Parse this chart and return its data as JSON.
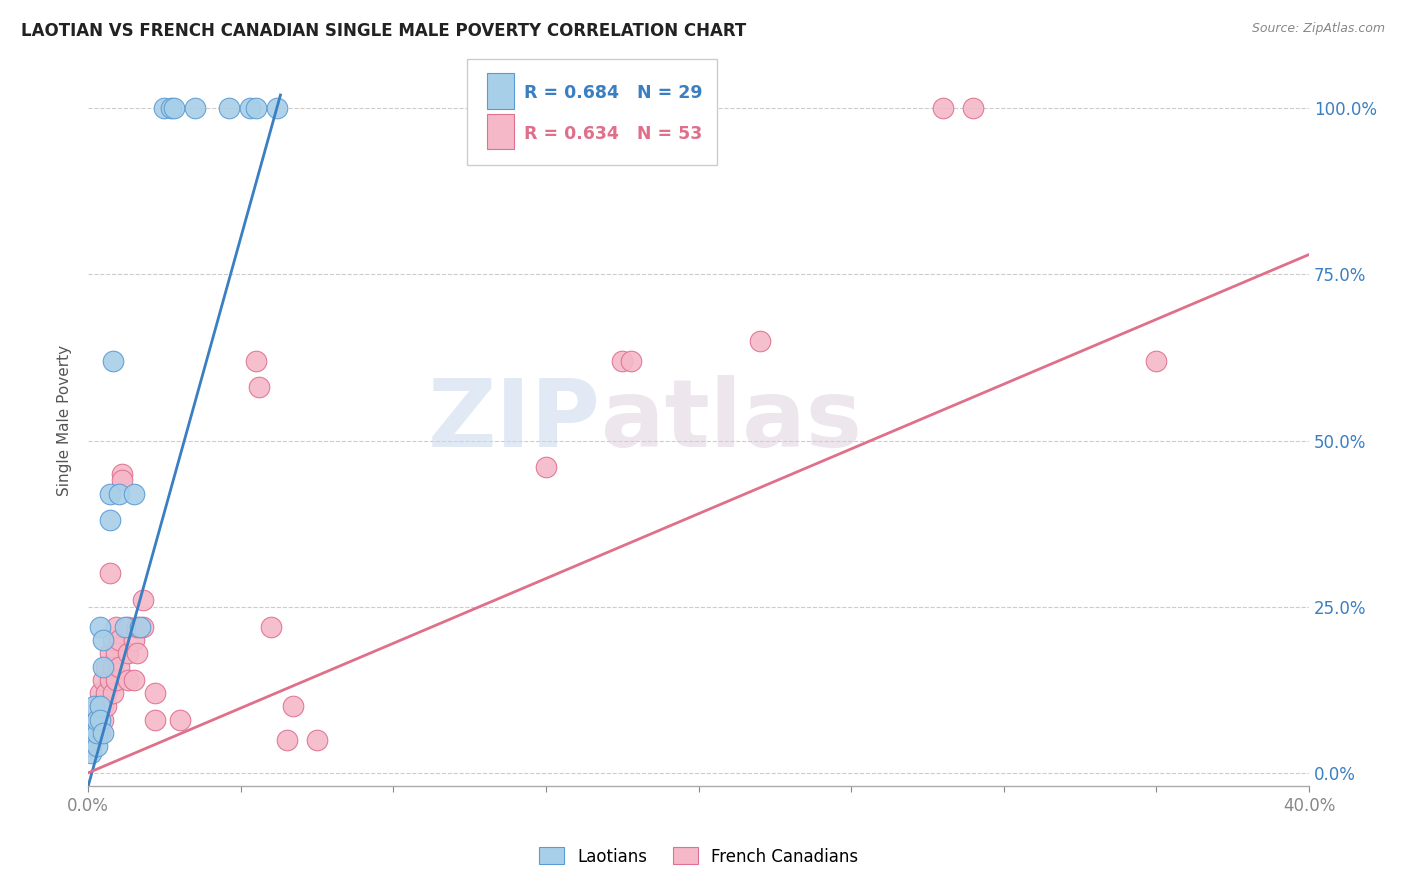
{
  "title": "LAOTIAN VS FRENCH CANADIAN SINGLE MALE POVERTY CORRELATION CHART",
  "source": "Source: ZipAtlas.com",
  "ylabel": "Single Male Poverty",
  "ytick_labels": [
    "0.0%",
    "25.0%",
    "50.0%",
    "75.0%",
    "100.0%"
  ],
  "ytick_values": [
    0.0,
    0.25,
    0.5,
    0.75,
    1.0
  ],
  "xlim": [
    0.0,
    0.4
  ],
  "ylim": [
    -0.02,
    1.08
  ],
  "legend_laotian_R": "R = 0.684",
  "legend_laotian_N": "N = 29",
  "legend_french_R": "R = 0.634",
  "legend_french_N": "N = 53",
  "laotian_color": "#a8cfe8",
  "laotian_edge_color": "#5b9bd5",
  "french_color": "#f4b8c8",
  "french_edge_color": "#e07090",
  "laotian_line_color": "#3a7fc1",
  "french_line_color": "#e0708a",
  "background_color": "#ffffff",
  "watermark_zip": "ZIP",
  "watermark_atlas": "atlas",
  "laotian_points": [
    [
      0.001,
      0.03
    ],
    [
      0.001,
      0.06
    ],
    [
      0.001,
      0.05
    ],
    [
      0.002,
      0.07
    ],
    [
      0.002,
      0.1
    ],
    [
      0.003,
      0.04
    ],
    [
      0.003,
      0.06
    ],
    [
      0.003,
      0.08
    ],
    [
      0.004,
      0.22
    ],
    [
      0.004,
      0.1
    ],
    [
      0.004,
      0.08
    ],
    [
      0.005,
      0.2
    ],
    [
      0.005,
      0.16
    ],
    [
      0.005,
      0.06
    ],
    [
      0.007,
      0.42
    ],
    [
      0.007,
      0.38
    ],
    [
      0.008,
      0.62
    ],
    [
      0.01,
      0.42
    ],
    [
      0.012,
      0.22
    ],
    [
      0.015,
      0.42
    ],
    [
      0.017,
      0.22
    ],
    [
      0.025,
      1.0
    ],
    [
      0.027,
      1.0
    ],
    [
      0.028,
      1.0
    ],
    [
      0.035,
      1.0
    ],
    [
      0.046,
      1.0
    ],
    [
      0.053,
      1.0
    ],
    [
      0.055,
      1.0
    ],
    [
      0.062,
      1.0
    ]
  ],
  "french_points": [
    [
      0.001,
      0.04
    ],
    [
      0.001,
      0.06
    ],
    [
      0.002,
      0.08
    ],
    [
      0.003,
      0.1
    ],
    [
      0.003,
      0.06
    ],
    [
      0.003,
      0.08
    ],
    [
      0.004,
      0.12
    ],
    [
      0.004,
      0.1
    ],
    [
      0.004,
      0.06
    ],
    [
      0.005,
      0.14
    ],
    [
      0.005,
      0.1
    ],
    [
      0.005,
      0.08
    ],
    [
      0.006,
      0.16
    ],
    [
      0.006,
      0.12
    ],
    [
      0.006,
      0.1
    ],
    [
      0.007,
      0.3
    ],
    [
      0.007,
      0.18
    ],
    [
      0.007,
      0.14
    ],
    [
      0.008,
      0.2
    ],
    [
      0.008,
      0.16
    ],
    [
      0.008,
      0.12
    ],
    [
      0.009,
      0.22
    ],
    [
      0.009,
      0.18
    ],
    [
      0.009,
      0.14
    ],
    [
      0.01,
      0.2
    ],
    [
      0.01,
      0.16
    ],
    [
      0.011,
      0.45
    ],
    [
      0.011,
      0.44
    ],
    [
      0.013,
      0.22
    ],
    [
      0.013,
      0.18
    ],
    [
      0.013,
      0.14
    ],
    [
      0.015,
      0.2
    ],
    [
      0.015,
      0.14
    ],
    [
      0.016,
      0.22
    ],
    [
      0.016,
      0.18
    ],
    [
      0.018,
      0.26
    ],
    [
      0.018,
      0.22
    ],
    [
      0.022,
      0.08
    ],
    [
      0.022,
      0.12
    ],
    [
      0.03,
      0.08
    ],
    [
      0.055,
      0.62
    ],
    [
      0.056,
      0.58
    ],
    [
      0.06,
      0.22
    ],
    [
      0.065,
      0.05
    ],
    [
      0.067,
      0.1
    ],
    [
      0.075,
      0.05
    ],
    [
      0.15,
      0.46
    ],
    [
      0.175,
      0.62
    ],
    [
      0.178,
      0.62
    ],
    [
      0.22,
      0.65
    ],
    [
      0.28,
      1.0
    ],
    [
      0.29,
      1.0
    ],
    [
      0.35,
      0.62
    ]
  ],
  "laotian_line": {
    "x0": 0.0,
    "y0": -0.02,
    "x1": 0.063,
    "y1": 1.02
  },
  "french_line": {
    "x0": 0.0,
    "y0": 0.0,
    "x1": 0.4,
    "y1": 0.78
  }
}
